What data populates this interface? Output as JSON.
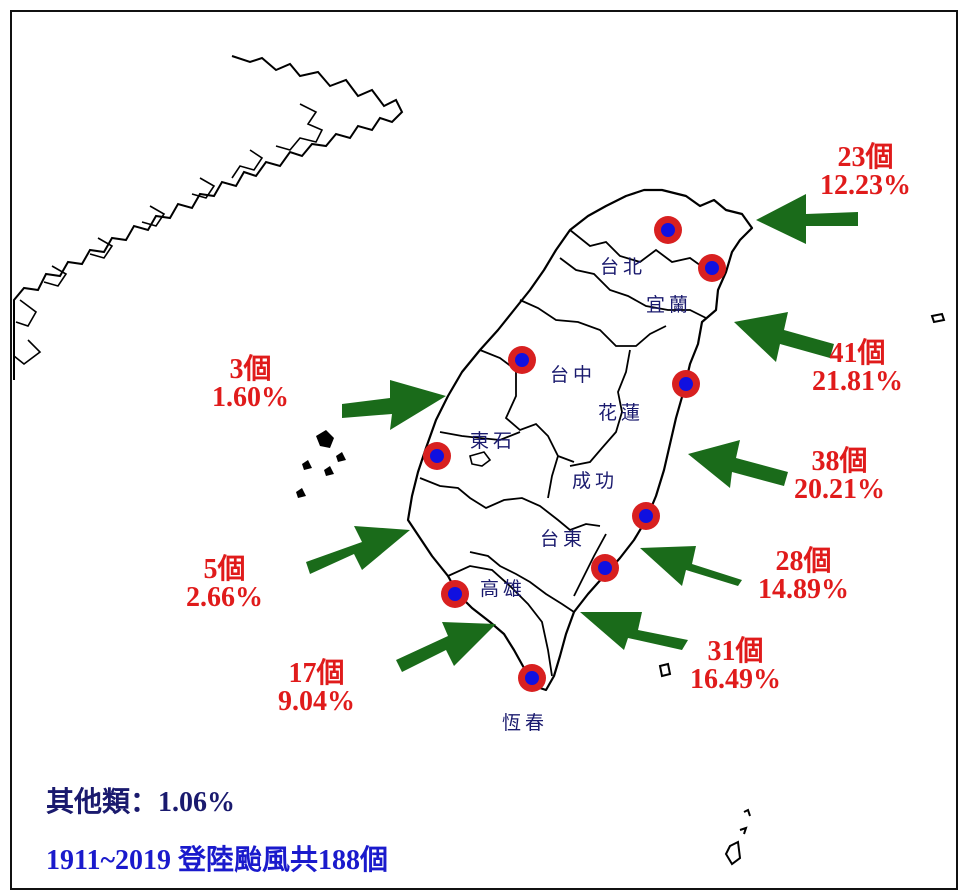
{
  "cities": {
    "taipei": "台北",
    "yilan": "宜蘭",
    "taichung": "台中",
    "hualien": "花蓮",
    "dongshi": "東石",
    "chenggong": "成功",
    "taitung": "台東",
    "kaohsiung": "高雄",
    "hengchun": "恆春"
  },
  "landfall": [
    {
      "id": "northeast",
      "count": "23個",
      "pct": "12.23%"
    },
    {
      "id": "yilan_hualien",
      "count": "41個",
      "pct": "21.81%"
    },
    {
      "id": "hualien_chenggong",
      "count": "38個",
      "pct": "20.21%"
    },
    {
      "id": "chenggong_taitung",
      "count": "28個",
      "pct": "14.89%"
    },
    {
      "id": "taitung_hengchun",
      "count": "31個",
      "pct": "16.49%"
    },
    {
      "id": "kaohsiung_hengchun",
      "count": "17個",
      "pct": "9.04%"
    },
    {
      "id": "dongshi_kaohsiung",
      "count": "5個",
      "pct": "2.66%"
    },
    {
      "id": "taichung_dongshi",
      "count": "3個",
      "pct": "1.60%"
    }
  ],
  "notes": {
    "other": "其他類：1.06%",
    "total": "1911~2019 登陸颱風共188個"
  },
  "colors": {
    "arrow": "#1a6b1a",
    "stat_text": "#e01b1b",
    "city_text": "#1a1a6e",
    "marker_ring": "#d82020",
    "marker_dot": "#1010e0"
  }
}
